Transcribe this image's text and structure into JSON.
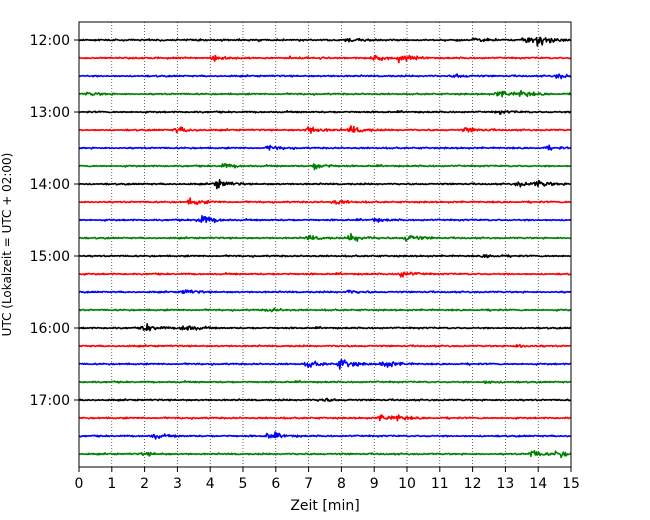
{
  "chart_data": {
    "type": "line",
    "xlabel": "Zeit  [min]",
    "ylabel": "UTC (Lokalzeit = UTC + 02:00)",
    "xlim": [
      0,
      15
    ],
    "x_ticks": [
      0,
      1,
      2,
      3,
      4,
      5,
      6,
      7,
      8,
      9,
      10,
      11,
      12,
      13,
      14,
      15
    ],
    "y_tick_labels": [
      "12:00",
      "13:00",
      "14:00",
      "15:00",
      "16:00",
      "17:00"
    ],
    "grid": "vertical dotted",
    "series_colors": [
      "#000000",
      "#ff0000",
      "#0000ff",
      "#008000"
    ],
    "traces": [
      {
        "start": "12:00",
        "color": "#000000",
        "events": [
          {
            "t": 14.0,
            "amp": 7
          },
          {
            "t": 13.6,
            "amp": 4
          },
          {
            "t": 12.1,
            "amp": 4
          },
          {
            "t": 8.2,
            "amp": 2.5
          }
        ]
      },
      {
        "start": "12:15",
        "color": "#ff0000",
        "events": [
          {
            "t": 9.8,
            "amp": 5
          },
          {
            "t": 9.0,
            "amp": 3
          },
          {
            "t": 4.1,
            "amp": 3
          }
        ]
      },
      {
        "start": "12:30",
        "color": "#0000ff",
        "events": [
          {
            "t": 14.6,
            "amp": 3
          },
          {
            "t": 11.5,
            "amp": 2
          }
        ]
      },
      {
        "start": "12:45",
        "color": "#008000",
        "events": [
          {
            "t": 12.8,
            "amp": 5
          },
          {
            "t": 13.5,
            "amp": 4
          },
          {
            "t": 0.3,
            "amp": 2
          }
        ]
      },
      {
        "start": "13:00",
        "color": "#000000",
        "events": [
          {
            "t": 12.8,
            "amp": 2
          }
        ]
      },
      {
        "start": "13:15",
        "color": "#ff0000",
        "events": [
          {
            "t": 7.0,
            "amp": 5
          },
          {
            "t": 8.3,
            "amp": 5
          },
          {
            "t": 3.0,
            "amp": 4
          },
          {
            "t": 11.8,
            "amp": 3
          }
        ]
      },
      {
        "start": "13:30",
        "color": "#0000ff",
        "events": [
          {
            "t": 5.8,
            "amp": 3
          },
          {
            "t": 14.3,
            "amp": 2
          }
        ]
      },
      {
        "start": "13:45",
        "color": "#008000",
        "events": [
          {
            "t": 7.2,
            "amp": 4
          },
          {
            "t": 4.4,
            "amp": 3
          }
        ]
      },
      {
        "start": "14:00",
        "color": "#000000",
        "events": [
          {
            "t": 4.2,
            "amp": 6
          },
          {
            "t": 14.0,
            "amp": 4
          },
          {
            "t": 13.4,
            "amp": 3
          }
        ]
      },
      {
        "start": "14:15",
        "color": "#ff0000",
        "events": [
          {
            "t": 3.4,
            "amp": 4
          },
          {
            "t": 7.8,
            "amp": 3
          }
        ]
      },
      {
        "start": "14:30",
        "color": "#0000ff",
        "events": [
          {
            "t": 3.7,
            "amp": 7
          },
          {
            "t": 9.0,
            "amp": 2
          }
        ]
      },
      {
        "start": "14:45",
        "color": "#008000",
        "events": [
          {
            "t": 8.3,
            "amp": 5
          },
          {
            "t": 10.0,
            "amp": 5
          },
          {
            "t": 7.0,
            "amp": 3
          }
        ]
      },
      {
        "start": "15:00",
        "color": "#000000",
        "events": [
          {
            "t": 12.4,
            "amp": 2
          }
        ]
      },
      {
        "start": "15:15",
        "color": "#ff0000",
        "events": [
          {
            "t": 9.8,
            "amp": 4
          }
        ]
      },
      {
        "start": "15:30",
        "color": "#0000ff",
        "events": [
          {
            "t": 3.2,
            "amp": 3
          },
          {
            "t": 8.2,
            "amp": 2
          }
        ]
      },
      {
        "start": "15:45",
        "color": "#008000",
        "events": [
          {
            "t": 5.8,
            "amp": 2
          }
        ]
      },
      {
        "start": "16:00",
        "color": "#000000",
        "events": [
          {
            "t": 2.0,
            "amp": 5
          },
          {
            "t": 3.2,
            "amp": 5
          }
        ]
      },
      {
        "start": "16:15",
        "color": "#ff0000",
        "events": [
          {
            "t": 13.4,
            "amp": 2
          }
        ]
      },
      {
        "start": "16:30",
        "color": "#0000ff",
        "events": [
          {
            "t": 8.0,
            "amp": 7
          },
          {
            "t": 9.3,
            "amp": 6
          },
          {
            "t": 7.0,
            "amp": 4
          }
        ]
      },
      {
        "start": "16:45",
        "color": "#008000",
        "events": [
          {
            "t": 12.4,
            "amp": 2
          }
        ]
      },
      {
        "start": "17:00",
        "color": "#000000",
        "events": [
          {
            "t": 7.4,
            "amp": 2
          }
        ]
      },
      {
        "start": "17:15",
        "color": "#ff0000",
        "events": [
          {
            "t": 9.2,
            "amp": 4
          },
          {
            "t": 9.7,
            "amp": 3
          }
        ]
      },
      {
        "start": "17:30",
        "color": "#0000ff",
        "events": [
          {
            "t": 5.8,
            "amp": 5
          },
          {
            "t": 2.3,
            "amp": 3
          }
        ]
      },
      {
        "start": "17:45",
        "color": "#008000",
        "events": [
          {
            "t": 13.8,
            "amp": 5
          },
          {
            "t": 14.6,
            "amp": 4
          },
          {
            "t": 2.0,
            "amp": 2
          }
        ]
      }
    ]
  }
}
